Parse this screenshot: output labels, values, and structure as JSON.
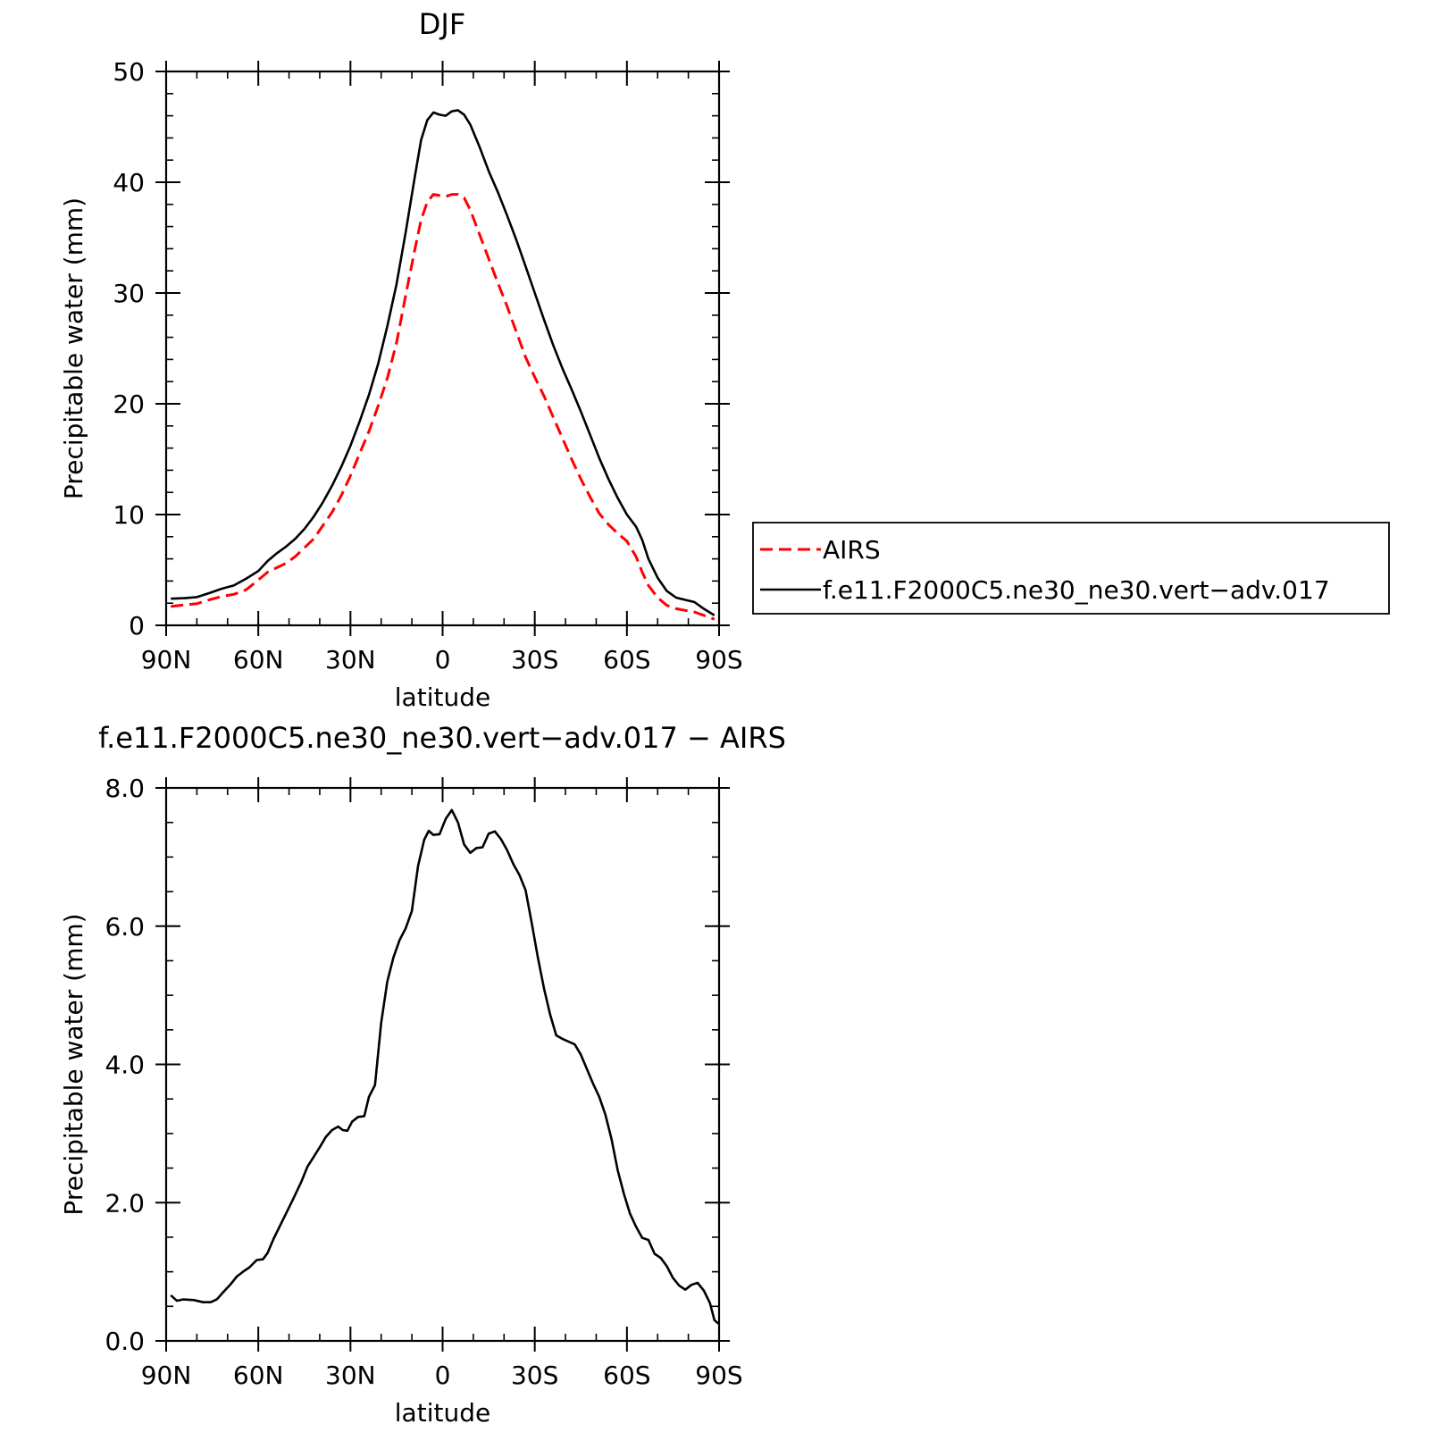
{
  "chart_data": [
    {
      "type": "line",
      "title": "DJF",
      "xlabel": "latitude",
      "ylabel": "Precipitable water (mm)",
      "xlim": [
        -90,
        90
      ],
      "ylim": [
        0,
        50
      ],
      "x_ticks": [
        {
          "value": -90,
          "label": "90N"
        },
        {
          "value": -60,
          "label": "60N"
        },
        {
          "value": -30,
          "label": "30N"
        },
        {
          "value": 0,
          "label": "0"
        },
        {
          "value": 30,
          "label": "30S"
        },
        {
          "value": 60,
          "label": "60S"
        },
        {
          "value": 90,
          "label": "90S"
        }
      ],
      "y_ticks": [
        {
          "value": 0,
          "label": "0"
        },
        {
          "value": 10,
          "label": "10"
        },
        {
          "value": 20,
          "label": "20"
        },
        {
          "value": 30,
          "label": "30"
        },
        {
          "value": 40,
          "label": "40"
        },
        {
          "value": 50,
          "label": "50"
        }
      ],
      "y_minor_step": 2,
      "x_minor_step": 10,
      "legend_position": "right",
      "series": [
        {
          "name": "AIRS",
          "color": "#ff0000",
          "dash": true,
          "points": [
            [
              -88.5,
              1.7
            ],
            [
              -84,
              1.85
            ],
            [
              -80,
              1.95
            ],
            [
              -76,
              2.3
            ],
            [
              -72,
              2.6
            ],
            [
              -68,
              2.8
            ],
            [
              -64,
              3.2
            ],
            [
              -60,
              4.1
            ],
            [
              -57,
              4.8
            ],
            [
              -54,
              5.2
            ],
            [
              -51,
              5.6
            ],
            [
              -48,
              6.2
            ],
            [
              -45,
              7.0
            ],
            [
              -42,
              7.8
            ],
            [
              -39,
              9.0
            ],
            [
              -36,
              10.2
            ],
            [
              -33,
              11.7
            ],
            [
              -30,
              13.5
            ],
            [
              -27,
              15.5
            ],
            [
              -24,
              17.5
            ],
            [
              -21,
              19.8
            ],
            [
              -18,
              22.3
            ],
            [
              -15,
              25.5
            ],
            [
              -12,
              29.8
            ],
            [
              -9,
              34.0
            ],
            [
              -7,
              36.6
            ],
            [
              -5,
              38.2
            ],
            [
              -3,
              38.9
            ],
            [
              -1,
              38.8
            ],
            [
              1,
              38.7
            ],
            [
              3,
              38.9
            ],
            [
              5,
              38.9
            ],
            [
              7,
              38.6
            ],
            [
              9,
              37.5
            ],
            [
              12,
              35.3
            ],
            [
              15,
              33.1
            ],
            [
              18,
              30.9
            ],
            [
              21,
              28.8
            ],
            [
              24,
              26.5
            ],
            [
              27,
              24.2
            ],
            [
              30,
              22.4
            ],
            [
              33,
              20.7
            ],
            [
              36,
              18.8
            ],
            [
              39,
              16.9
            ],
            [
              42,
              15.0
            ],
            [
              45,
              13.2
            ],
            [
              48,
              11.6
            ],
            [
              51,
              10.1
            ],
            [
              54,
              9.1
            ],
            [
              57,
              8.3
            ],
            [
              60,
              7.6
            ],
            [
              63,
              6.2
            ],
            [
              65,
              4.8
            ],
            [
              67,
              3.6
            ],
            [
              70,
              2.5
            ],
            [
              73,
              1.8
            ],
            [
              76,
              1.5
            ],
            [
              79,
              1.35
            ],
            [
              82,
              1.2
            ],
            [
              85,
              0.9
            ],
            [
              88.5,
              0.55
            ]
          ]
        },
        {
          "name": "f.e11.F2000C5.ne30_ne30.vert−adv.017",
          "color": "#000000",
          "dash": false,
          "points": [
            [
              -88.5,
              2.4
            ],
            [
              -84,
              2.45
            ],
            [
              -80,
              2.55
            ],
            [
              -76,
              2.9
            ],
            [
              -72,
              3.3
            ],
            [
              -68,
              3.6
            ],
            [
              -64,
              4.2
            ],
            [
              -60,
              4.9
            ],
            [
              -57,
              5.8
            ],
            [
              -54,
              6.5
            ],
            [
              -51,
              7.1
            ],
            [
              -48,
              7.8
            ],
            [
              -45,
              8.7
            ],
            [
              -42,
              9.8
            ],
            [
              -39,
              11.1
            ],
            [
              -36,
              12.6
            ],
            [
              -33,
              14.3
            ],
            [
              -30,
              16.2
            ],
            [
              -27,
              18.4
            ],
            [
              -24,
              20.8
            ],
            [
              -21,
              23.6
            ],
            [
              -18,
              27.0
            ],
            [
              -15,
              30.8
            ],
            [
              -12,
              35.5
            ],
            [
              -9,
              40.6
            ],
            [
              -7,
              43.8
            ],
            [
              -5,
              45.6
            ],
            [
              -3,
              46.3
            ],
            [
              -1,
              46.1
            ],
            [
              1,
              46.0
            ],
            [
              3,
              46.4
            ],
            [
              5,
              46.5
            ],
            [
              7,
              46.1
            ],
            [
              9,
              45.2
            ],
            [
              12,
              43.2
            ],
            [
              15,
              41.0
            ],
            [
              18,
              39.1
            ],
            [
              21,
              37.0
            ],
            [
              24,
              34.8
            ],
            [
              27,
              32.4
            ],
            [
              30,
              30.0
            ],
            [
              33,
              27.6
            ],
            [
              36,
              25.3
            ],
            [
              39,
              23.2
            ],
            [
              42,
              21.3
            ],
            [
              45,
              19.3
            ],
            [
              48,
              17.2
            ],
            [
              51,
              15.1
            ],
            [
              54,
              13.2
            ],
            [
              57,
              11.5
            ],
            [
              60,
              10.0
            ],
            [
              63,
              8.9
            ],
            [
              65,
              7.7
            ],
            [
              67,
              6.0
            ],
            [
              70,
              4.3
            ],
            [
              73,
              3.1
            ],
            [
              76,
              2.5
            ],
            [
              79,
              2.3
            ],
            [
              82,
              2.1
            ],
            [
              85,
              1.5
            ],
            [
              88.5,
              0.9
            ]
          ]
        }
      ]
    },
    {
      "type": "line",
      "title": "f.e11.F2000C5.ne30_ne30.vert−adv.017  −  AIRS",
      "xlabel": "latitude",
      "ylabel": "Precipitable water (mm)",
      "xlim": [
        -90,
        90
      ],
      "ylim": [
        0,
        8
      ],
      "x_ticks": [
        {
          "value": -90,
          "label": "90N"
        },
        {
          "value": -60,
          "label": "60N"
        },
        {
          "value": -30,
          "label": "30N"
        },
        {
          "value": 0,
          "label": "0"
        },
        {
          "value": 30,
          "label": "30S"
        },
        {
          "value": 60,
          "label": "60S"
        },
        {
          "value": 90,
          "label": "90S"
        }
      ],
      "y_ticks": [
        {
          "value": 0,
          "label": "0.0"
        },
        {
          "value": 2,
          "label": "2.0"
        },
        {
          "value": 4,
          "label": "4.0"
        },
        {
          "value": 6,
          "label": "6.0"
        },
        {
          "value": 8,
          "label": "8.0"
        }
      ],
      "y_minor_step": 0.5,
      "x_minor_step": 10,
      "series": [
        {
          "color": "#000000",
          "dash": false,
          "points": [
            [
              -88.5,
              0.66
            ],
            [
              -86.5,
              0.58
            ],
            [
              -84.5,
              0.6
            ],
            [
              -81,
              0.59
            ],
            [
              -78,
              0.56
            ],
            [
              -75.5,
              0.56
            ],
            [
              -73.5,
              0.6
            ],
            [
              -71.5,
              0.7
            ],
            [
              -69,
              0.82
            ],
            [
              -67,
              0.93
            ],
            [
              -65,
              1.0
            ],
            [
              -63,
              1.06
            ],
            [
              -60.5,
              1.17
            ],
            [
              -58.5,
              1.18
            ],
            [
              -57,
              1.27
            ],
            [
              -55,
              1.48
            ],
            [
              -52,
              1.75
            ],
            [
              -49,
              2.02
            ],
            [
              -46,
              2.3
            ],
            [
              -44,
              2.52
            ],
            [
              -42,
              2.66
            ],
            [
              -40,
              2.8
            ],
            [
              -38,
              2.95
            ],
            [
              -36,
              3.05
            ],
            [
              -34,
              3.1
            ],
            [
              -32.5,
              3.05
            ],
            [
              -31,
              3.04
            ],
            [
              -29.5,
              3.17
            ],
            [
              -27.5,
              3.24
            ],
            [
              -25.5,
              3.25
            ],
            [
              -24,
              3.53
            ],
            [
              -22,
              3.7
            ],
            [
              -20,
              4.6
            ],
            [
              -18,
              5.2
            ],
            [
              -16,
              5.55
            ],
            [
              -14,
              5.8
            ],
            [
              -12,
              5.97
            ],
            [
              -10,
              6.22
            ],
            [
              -8,
              6.87
            ],
            [
              -6,
              7.25
            ],
            [
              -4.5,
              7.38
            ],
            [
              -3,
              7.32
            ],
            [
              -1,
              7.33
            ],
            [
              1,
              7.55
            ],
            [
              3,
              7.68
            ],
            [
              5,
              7.5
            ],
            [
              7,
              7.18
            ],
            [
              9,
              7.06
            ],
            [
              11,
              7.13
            ],
            [
              13,
              7.14
            ],
            [
              15,
              7.34
            ],
            [
              17,
              7.37
            ],
            [
              19,
              7.26
            ],
            [
              21,
              7.1
            ],
            [
              23,
              6.9
            ],
            [
              25,
              6.74
            ],
            [
              27,
              6.52
            ],
            [
              29,
              6.05
            ],
            [
              31,
              5.55
            ],
            [
              33,
              5.1
            ],
            [
              35,
              4.72
            ],
            [
              37,
              4.42
            ],
            [
              39,
              4.37
            ],
            [
              41,
              4.33
            ],
            [
              43,
              4.29
            ],
            [
              45,
              4.14
            ],
            [
              47,
              3.93
            ],
            [
              49,
              3.72
            ],
            [
              51,
              3.53
            ],
            [
              53,
              3.27
            ],
            [
              55,
              2.92
            ],
            [
              57,
              2.47
            ],
            [
              59,
              2.13
            ],
            [
              61,
              1.84
            ],
            [
              63,
              1.65
            ],
            [
              65,
              1.49
            ],
            [
              67,
              1.46
            ],
            [
              69,
              1.26
            ],
            [
              71,
              1.2
            ],
            [
              73,
              1.08
            ],
            [
              75,
              0.91
            ],
            [
              77,
              0.8
            ],
            [
              79,
              0.74
            ],
            [
              81,
              0.81
            ],
            [
              83,
              0.84
            ],
            [
              85,
              0.73
            ],
            [
              87,
              0.55
            ],
            [
              88.5,
              0.3
            ],
            [
              89.8,
              0.25
            ]
          ]
        }
      ]
    }
  ]
}
